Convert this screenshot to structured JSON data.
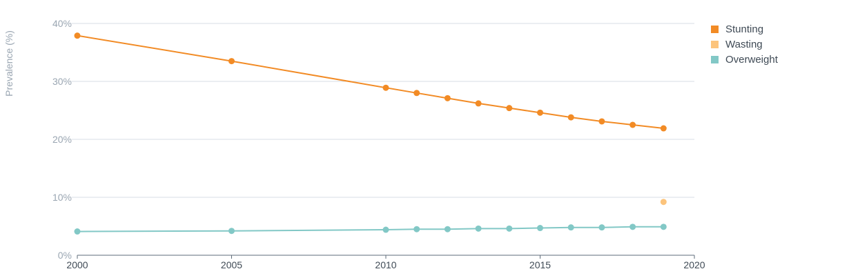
{
  "chart_data": {
    "type": "line",
    "ylabel": "Prevalence (%)",
    "xlim": [
      2000,
      2020
    ],
    "ylim": [
      0,
      40
    ],
    "x_ticks": [
      "2000",
      "2005",
      "2010",
      "2015",
      "2020"
    ],
    "y_ticks": [
      "0%",
      "10%",
      "20%",
      "30%",
      "40%"
    ],
    "grid": "horizontal",
    "legend": "top-right",
    "series": [
      {
        "name": "Stunting",
        "color": "#f28b25",
        "points": [
          {
            "x": 2000,
            "y": 37.9
          },
          {
            "x": 2005,
            "y": 33.5
          },
          {
            "x": 2010,
            "y": 28.9
          },
          {
            "x": 2011,
            "y": 28.0
          },
          {
            "x": 2012,
            "y": 27.1
          },
          {
            "x": 2013,
            "y": 26.2
          },
          {
            "x": 2014,
            "y": 25.4
          },
          {
            "x": 2015,
            "y": 24.6
          },
          {
            "x": 2016,
            "y": 23.8
          },
          {
            "x": 2017,
            "y": 23.1
          },
          {
            "x": 2018,
            "y": 22.5
          },
          {
            "x": 2019,
            "y": 21.9
          }
        ]
      },
      {
        "name": "Wasting",
        "color": "#fcc47c",
        "points": [
          {
            "x": 2019,
            "y": 9.2
          }
        ]
      },
      {
        "name": "Overweight",
        "color": "#82c8c6",
        "points": [
          {
            "x": 2000,
            "y": 4.1
          },
          {
            "x": 2005,
            "y": 4.2
          },
          {
            "x": 2010,
            "y": 4.4
          },
          {
            "x": 2011,
            "y": 4.5
          },
          {
            "x": 2012,
            "y": 4.5
          },
          {
            "x": 2013,
            "y": 4.6
          },
          {
            "x": 2014,
            "y": 4.6
          },
          {
            "x": 2015,
            "y": 4.7
          },
          {
            "x": 2016,
            "y": 4.8
          },
          {
            "x": 2017,
            "y": 4.8
          },
          {
            "x": 2018,
            "y": 4.9
          },
          {
            "x": 2019,
            "y": 4.9
          }
        ]
      }
    ]
  }
}
